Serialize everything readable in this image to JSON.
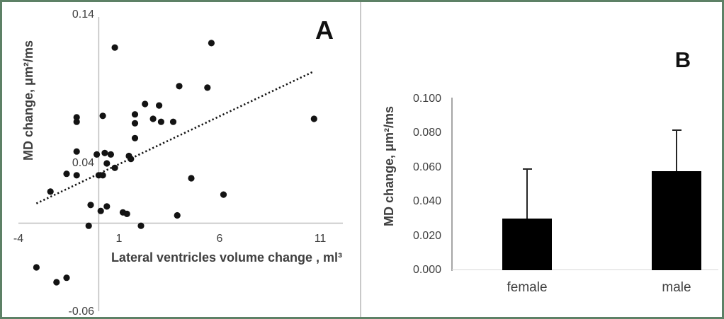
{
  "figure": {
    "panel_a_letter": "A",
    "panel_b_letter": "B",
    "border_color": "#5d8166",
    "divider_color": "#c9c9c9"
  },
  "chart_data": [
    {
      "type": "scatter",
      "panel_letter": "A",
      "title": "",
      "xlabel": "Lateral ventricles volume change , ml³",
      "ylabel": "MD change, μm²/ms",
      "xlim": [
        -4,
        11
      ],
      "ylim": [
        -0.06,
        0.14
      ],
      "grid": false,
      "x_ticks": [
        {
          "label": "-4",
          "value": -4
        },
        {
          "label": "1",
          "value": 1
        },
        {
          "label": "6",
          "value": 6
        },
        {
          "label": "11",
          "value": 11
        }
      ],
      "y_ticks": [
        {
          "label": "0.14",
          "value": 0.14
        },
        {
          "label": "0.04",
          "value": 0.04
        },
        {
          "label": "-0.06",
          "value": -0.06
        }
      ],
      "marker_color": "#131313",
      "axis_color": "#bdbdbd",
      "points": [
        [
          0.8,
          0.118
        ],
        [
          5.6,
          0.121
        ],
        [
          4.0,
          0.092
        ],
        [
          5.4,
          0.091
        ],
        [
          2.3,
          0.08
        ],
        [
          3.0,
          0.079
        ],
        [
          -1.1,
          0.071
        ],
        [
          -1.1,
          0.068
        ],
        [
          0.2,
          0.072
        ],
        [
          1.8,
          0.073
        ],
        [
          2.7,
          0.07
        ],
        [
          3.1,
          0.068
        ],
        [
          3.7,
          0.068
        ],
        [
          1.8,
          0.067
        ],
        [
          10.7,
          0.07
        ],
        [
          1.8,
          0.057
        ],
        [
          -1.1,
          0.048
        ],
        [
          -0.1,
          0.046
        ],
        [
          0.3,
          0.047
        ],
        [
          0.6,
          0.046
        ],
        [
          0.4,
          0.04
        ],
        [
          0.8,
          0.037
        ],
        [
          1.5,
          0.045
        ],
        [
          1.6,
          0.043
        ],
        [
          -1.6,
          0.033
        ],
        [
          -1.1,
          0.032
        ],
        [
          0.0,
          0.032
        ],
        [
          0.2,
          0.032
        ],
        [
          4.6,
          0.03
        ],
        [
          -2.4,
          0.021
        ],
        [
          6.2,
          0.019
        ],
        [
          -0.4,
          0.012
        ],
        [
          0.4,
          0.011
        ],
        [
          0.1,
          0.008
        ],
        [
          1.2,
          0.007
        ],
        [
          1.4,
          0.006
        ],
        [
          3.9,
          0.005
        ],
        [
          -0.5,
          -0.002
        ],
        [
          2.1,
          -0.002
        ],
        [
          -3.1,
          -0.03
        ],
        [
          -2.1,
          -0.04
        ],
        [
          -1.6,
          -0.037
        ]
      ],
      "trendline": {
        "style": "dotted",
        "x1": -3.1,
        "y1": 0.013,
        "x2": 10.7,
        "y2": 0.102
      }
    },
    {
      "type": "bar",
      "panel_letter": "B",
      "title": "",
      "xlabel": "",
      "ylabel": "MD change, μm²/ms",
      "ylim": [
        0,
        0.1
      ],
      "grid": false,
      "y_ticks": [
        {
          "label": "0.100",
          "value": 0.1
        },
        {
          "label": "0.080",
          "value": 0.08
        },
        {
          "label": "0.060",
          "value": 0.06
        },
        {
          "label": "0.040",
          "value": 0.04
        },
        {
          "label": "0.020",
          "value": 0.02
        },
        {
          "label": "0.000",
          "value": 0.0
        }
      ],
      "categories": [
        "female",
        "male"
      ],
      "values": [
        0.03,
        0.058
      ],
      "error_up": [
        0.059,
        0.082
      ],
      "bar_color": "#000000",
      "axis_color": "#a6a6a6"
    }
  ]
}
